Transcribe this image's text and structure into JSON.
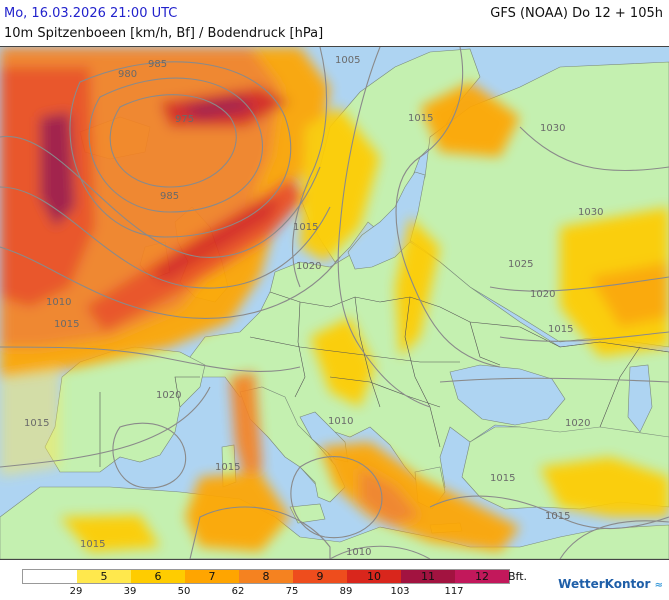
{
  "header": {
    "date_time": "Mo, 16.03.2026 21:00 UTC",
    "model_run": "GFS (NOAA) Do 12 + 105h",
    "parameter": "10m Spitzenboeen [km/h, Bf] / Bodendruck [hPa]"
  },
  "legend": {
    "unit": "Bft.",
    "segments": [
      {
        "label": "",
        "color": "#ffffff"
      },
      {
        "label": "5",
        "color": "#ffe84d"
      },
      {
        "label": "6",
        "color": "#ffcc00"
      },
      {
        "label": "7",
        "color": "#ffa500"
      },
      {
        "label": "8",
        "color": "#f58220"
      },
      {
        "label": "9",
        "color": "#ee4d1d"
      },
      {
        "label": "10",
        "color": "#d9261c"
      },
      {
        "label": "11",
        "color": "#a21340"
      },
      {
        "label": "12",
        "color": "#c2185b"
      }
    ],
    "ticks": [
      "29",
      "39",
      "50",
      "62",
      "75",
      "89",
      "103",
      "117"
    ]
  },
  "isobar_labels": [
    "1005",
    "1015",
    "1030",
    "980",
    "985",
    "975",
    "985",
    "1015",
    "1020",
    "1025",
    "1020",
    "1015",
    "1010",
    "1015",
    "1020",
    "1015",
    "1010",
    "1015",
    "1020",
    "1015",
    "1015",
    "1010",
    "1015",
    "1030"
  ],
  "brand": {
    "name": "WetterKontor",
    "mark": "≈"
  }
}
